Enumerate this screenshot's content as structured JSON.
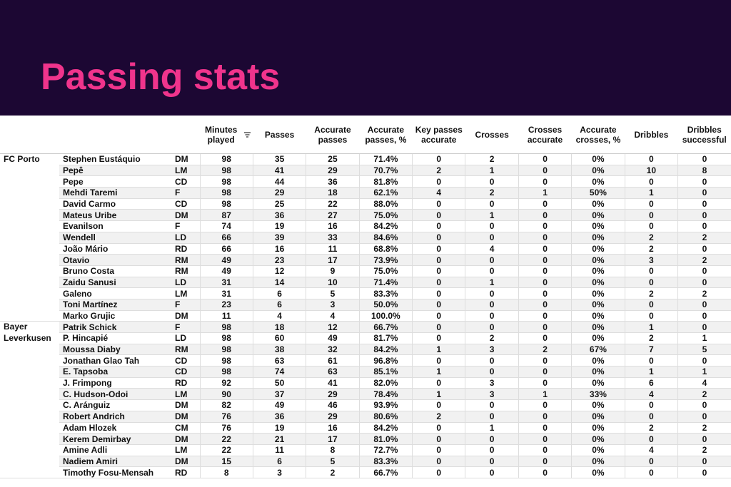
{
  "header": {
    "title": "Passing stats"
  },
  "table": {
    "columns": [
      "Minutes played",
      "Passes",
      "Accurate passes",
      "Accurate passes, %",
      "Key passes accurate",
      "Crosses",
      "Crosses accurate",
      "Accurate crosses, %",
      "Dribbles",
      "Dribbles successful"
    ],
    "groups": [
      {
        "team": "FC Porto",
        "rows": [
          [
            "Stephen Eustáquio",
            "DM",
            98,
            35,
            25,
            "71.4%",
            0,
            2,
            0,
            "0%",
            0,
            0
          ],
          [
            "Pepê",
            "LM",
            98,
            41,
            29,
            "70.7%",
            2,
            1,
            0,
            "0%",
            10,
            8
          ],
          [
            "Pepe",
            "CD",
            98,
            44,
            36,
            "81.8%",
            0,
            0,
            0,
            "0%",
            0,
            0
          ],
          [
            "Mehdi Taremi",
            "F",
            98,
            29,
            18,
            "62.1%",
            4,
            2,
            1,
            "50%",
            1,
            0
          ],
          [
            "David Carmo",
            "CD",
            98,
            25,
            22,
            "88.0%",
            0,
            0,
            0,
            "0%",
            0,
            0
          ],
          [
            "Mateus Uribe",
            "DM",
            87,
            36,
            27,
            "75.0%",
            0,
            1,
            0,
            "0%",
            0,
            0
          ],
          [
            "Evanilson",
            "F",
            74,
            19,
            16,
            "84.2%",
            0,
            0,
            0,
            "0%",
            0,
            0
          ],
          [
            "Wendell",
            "LD",
            66,
            39,
            33,
            "84.6%",
            0,
            0,
            0,
            "0%",
            2,
            2
          ],
          [
            "João Mário",
            "RD",
            66,
            16,
            11,
            "68.8%",
            0,
            4,
            0,
            "0%",
            2,
            0
          ],
          [
            "Otavio",
            "RM",
            49,
            23,
            17,
            "73.9%",
            0,
            0,
            0,
            "0%",
            3,
            2
          ],
          [
            "Bruno Costa",
            "RM",
            49,
            12,
            9,
            "75.0%",
            0,
            0,
            0,
            "0%",
            0,
            0
          ],
          [
            "Zaidu Sanusi",
            "LD",
            31,
            14,
            10,
            "71.4%",
            0,
            1,
            0,
            "0%",
            0,
            0
          ],
          [
            "Galeno",
            "LM",
            31,
            6,
            5,
            "83.3%",
            0,
            0,
            0,
            "0%",
            2,
            2
          ],
          [
            "Toni Martínez",
            "F",
            23,
            6,
            3,
            "50.0%",
            0,
            0,
            0,
            "0%",
            0,
            0
          ],
          [
            "Marko Grujic",
            "DM",
            11,
            4,
            4,
            "100.0%",
            0,
            0,
            0,
            "0%",
            0,
            0
          ]
        ]
      },
      {
        "team": "Bayer Leverkusen",
        "rows": [
          [
            "Patrik Schick",
            "F",
            98,
            18,
            12,
            "66.7%",
            0,
            0,
            0,
            "0%",
            1,
            0
          ],
          [
            "P. Hincapié",
            "LD",
            98,
            60,
            49,
            "81.7%",
            0,
            2,
            0,
            "0%",
            2,
            1
          ],
          [
            "Moussa Diaby",
            "RM",
            98,
            38,
            32,
            "84.2%",
            1,
            3,
            2,
            "67%",
            7,
            5
          ],
          [
            "Jonathan Glao Tah",
            "CD",
            98,
            63,
            61,
            "96.8%",
            0,
            0,
            0,
            "0%",
            0,
            0
          ],
          [
            "E. Tapsoba",
            "CD",
            98,
            74,
            63,
            "85.1%",
            1,
            0,
            0,
            "0%",
            1,
            1
          ],
          [
            "J. Frimpong",
            "RD",
            92,
            50,
            41,
            "82.0%",
            0,
            3,
            0,
            "0%",
            6,
            4
          ],
          [
            "C. Hudson-Odoi",
            "LM",
            90,
            37,
            29,
            "78.4%",
            1,
            3,
            1,
            "33%",
            4,
            2
          ],
          [
            "C. Aránguiz",
            "DM",
            82,
            49,
            46,
            "93.9%",
            0,
            0,
            0,
            "0%",
            0,
            0
          ],
          [
            "Robert Andrich",
            "DM",
            76,
            36,
            29,
            "80.6%",
            2,
            0,
            0,
            "0%",
            0,
            0
          ],
          [
            "Adam Hlozek",
            "CM",
            76,
            19,
            16,
            "84.2%",
            0,
            1,
            0,
            "0%",
            2,
            2
          ],
          [
            "Kerem Demirbay",
            "DM",
            22,
            21,
            17,
            "81.0%",
            0,
            0,
            0,
            "0%",
            0,
            0
          ],
          [
            "Amine Adli",
            "LM",
            22,
            11,
            8,
            "72.7%",
            0,
            0,
            0,
            "0%",
            4,
            2
          ],
          [
            "Nadiem Amiri",
            "DM",
            15,
            6,
            5,
            "83.3%",
            0,
            0,
            0,
            "0%",
            0,
            0
          ],
          [
            "Timothy Fosu-Mensah",
            "RD",
            8,
            3,
            2,
            "66.7%",
            0,
            0,
            0,
            "0%",
            0,
            0
          ]
        ]
      }
    ]
  }
}
